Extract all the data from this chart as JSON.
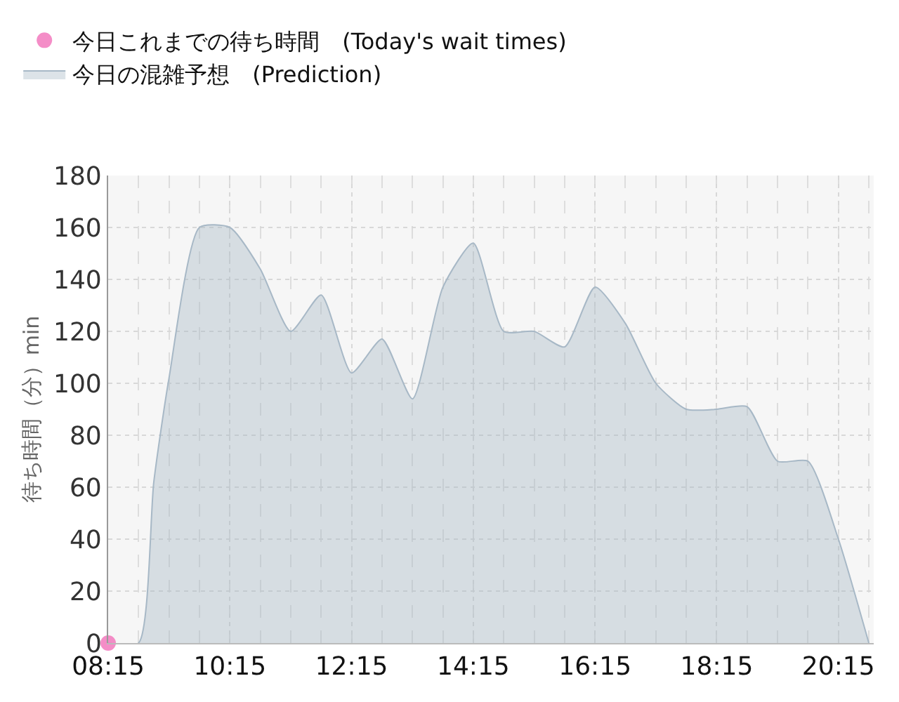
{
  "chart_data": {
    "type": "area",
    "ylabel": "待ち時間（分）min",
    "xlim": [
      8.25,
      20.83
    ],
    "xticks": [
      {
        "value": 8.25,
        "label": "08:15"
      },
      {
        "value": 10.25,
        "label": "10:15"
      },
      {
        "value": 12.25,
        "label": "12:15"
      },
      {
        "value": 14.25,
        "label": "14:15"
      },
      {
        "value": 16.25,
        "label": "16:15"
      },
      {
        "value": 18.25,
        "label": "18:15"
      },
      {
        "value": 20.25,
        "label": "20:15"
      }
    ],
    "ylim": [
      0,
      180
    ],
    "yticks": [
      0,
      20,
      40,
      60,
      80,
      100,
      120,
      140,
      160,
      180
    ],
    "grid": true,
    "legend": "top left",
    "series": [
      {
        "name": "今日これまでの待ち時間　(Today's wait times)",
        "type": "scatter",
        "marker": "circle",
        "color": "#f279bd",
        "x": [
          8.25
        ],
        "values": [
          0
        ]
      },
      {
        "name": "今日の混雑予想　(Prediction)",
        "type": "area",
        "color": "#a7b8c6",
        "x": [
          8.25,
          8.75,
          9.0,
          9.25,
          9.75,
          10.25,
          10.75,
          11.25,
          11.75,
          12.25,
          12.75,
          13.25,
          13.75,
          14.25,
          14.75,
          15.25,
          15.75,
          16.25,
          16.75,
          17.25,
          17.75,
          18.25,
          18.75,
          19.25,
          19.75,
          20.25,
          20.75
        ],
        "values": [
          0,
          0,
          62,
          102,
          160,
          160,
          144,
          120,
          134,
          104,
          117,
          94,
          137,
          154,
          120,
          120,
          114,
          137,
          123,
          100,
          90,
          90,
          91,
          70,
          70,
          40,
          0
        ]
      }
    ]
  }
}
